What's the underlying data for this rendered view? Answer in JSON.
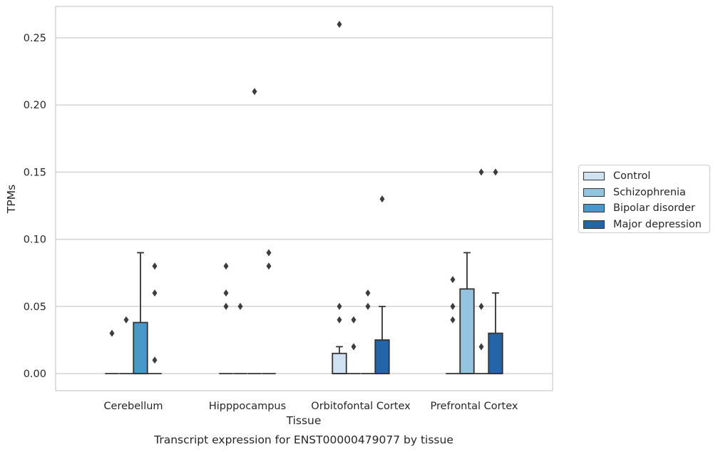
{
  "chart_data": {
    "type": "box",
    "title": "Transcript expression for ENST00000479077 by tissue",
    "xlabel": "Tissue",
    "ylabel": "TPMs",
    "ylim": [
      -0.013,
      0.274
    ],
    "yticks": [
      "0.00",
      "0.05",
      "0.10",
      "0.15",
      "0.20",
      "0.25"
    ],
    "yticks_values": [
      0.0,
      0.05,
      0.1,
      0.15,
      0.2,
      0.25
    ],
    "grid": true,
    "legend_position": "right",
    "categories": [
      "Cerebellum",
      "Hipppocampus",
      "Orbitofontal Cortex",
      "Prefrontal Cortex"
    ],
    "series": [
      {
        "name": "Control",
        "color": "#d0e1f2",
        "boxes": [
          {
            "q1": 0,
            "median": 0,
            "q3": 0,
            "whislo": 0,
            "whishi": 0,
            "fliers": [
              0.03
            ]
          },
          {
            "q1": 0,
            "median": 0,
            "q3": 0,
            "whislo": 0,
            "whishi": 0,
            "fliers": [
              0.08,
              0.06,
              0.05
            ]
          },
          {
            "q1": 0,
            "median": 0,
            "q3": 0.015,
            "whislo": 0,
            "whishi": 0.02,
            "fliers": [
              0.05,
              0.04,
              0.26
            ]
          },
          {
            "q1": 0,
            "median": 0,
            "q3": 0,
            "whislo": 0,
            "whishi": 0,
            "fliers": [
              0.07,
              0.05,
              0.04
            ]
          }
        ]
      },
      {
        "name": "Schizophrenia",
        "color": "#94c4df",
        "boxes": [
          {
            "q1": 0,
            "median": 0,
            "q3": 0,
            "whislo": 0,
            "whishi": 0,
            "fliers": [
              0.04
            ]
          },
          {
            "q1": 0,
            "median": 0,
            "q3": 0,
            "whislo": 0,
            "whishi": 0,
            "fliers": [
              0.05
            ]
          },
          {
            "q1": 0,
            "median": 0,
            "q3": 0,
            "whislo": 0,
            "whishi": 0,
            "fliers": [
              0.04,
              0.02
            ]
          },
          {
            "q1": 0,
            "median": 0,
            "q3": 0.063,
            "whislo": 0,
            "whishi": 0.09,
            "fliers": []
          }
        ]
      },
      {
        "name": "Bipolar disorder",
        "color": "#4a98c9",
        "boxes": [
          {
            "q1": 0,
            "median": 0,
            "q3": 0.038,
            "whislo": 0,
            "whishi": 0.09,
            "fliers": []
          },
          {
            "q1": 0,
            "median": 0,
            "q3": 0,
            "whislo": 0,
            "whishi": 0,
            "fliers": [
              0.21
            ]
          },
          {
            "q1": 0,
            "median": 0,
            "q3": 0,
            "whislo": 0,
            "whishi": 0,
            "fliers": [
              0.06,
              0.05
            ]
          },
          {
            "q1": 0,
            "median": 0,
            "q3": 0,
            "whislo": 0,
            "whishi": 0,
            "fliers": [
              0.15,
              0.05,
              0.02
            ]
          }
        ]
      },
      {
        "name": "Major depression",
        "color": "#2464a8",
        "boxes": [
          {
            "q1": 0,
            "median": 0,
            "q3": 0,
            "whislo": 0,
            "whishi": 0,
            "fliers": [
              0.08,
              0.06,
              0.01
            ]
          },
          {
            "q1": 0,
            "median": 0,
            "q3": 0,
            "whislo": 0,
            "whishi": 0,
            "fliers": [
              0.09,
              0.08
            ]
          },
          {
            "q1": 0,
            "median": 0,
            "q3": 0.025,
            "whislo": 0,
            "whishi": 0.05,
            "fliers": [
              0.13
            ]
          },
          {
            "q1": 0,
            "median": 0,
            "q3": 0.03,
            "whislo": 0,
            "whishi": 0.06,
            "fliers": [
              0.15
            ]
          }
        ]
      }
    ]
  }
}
